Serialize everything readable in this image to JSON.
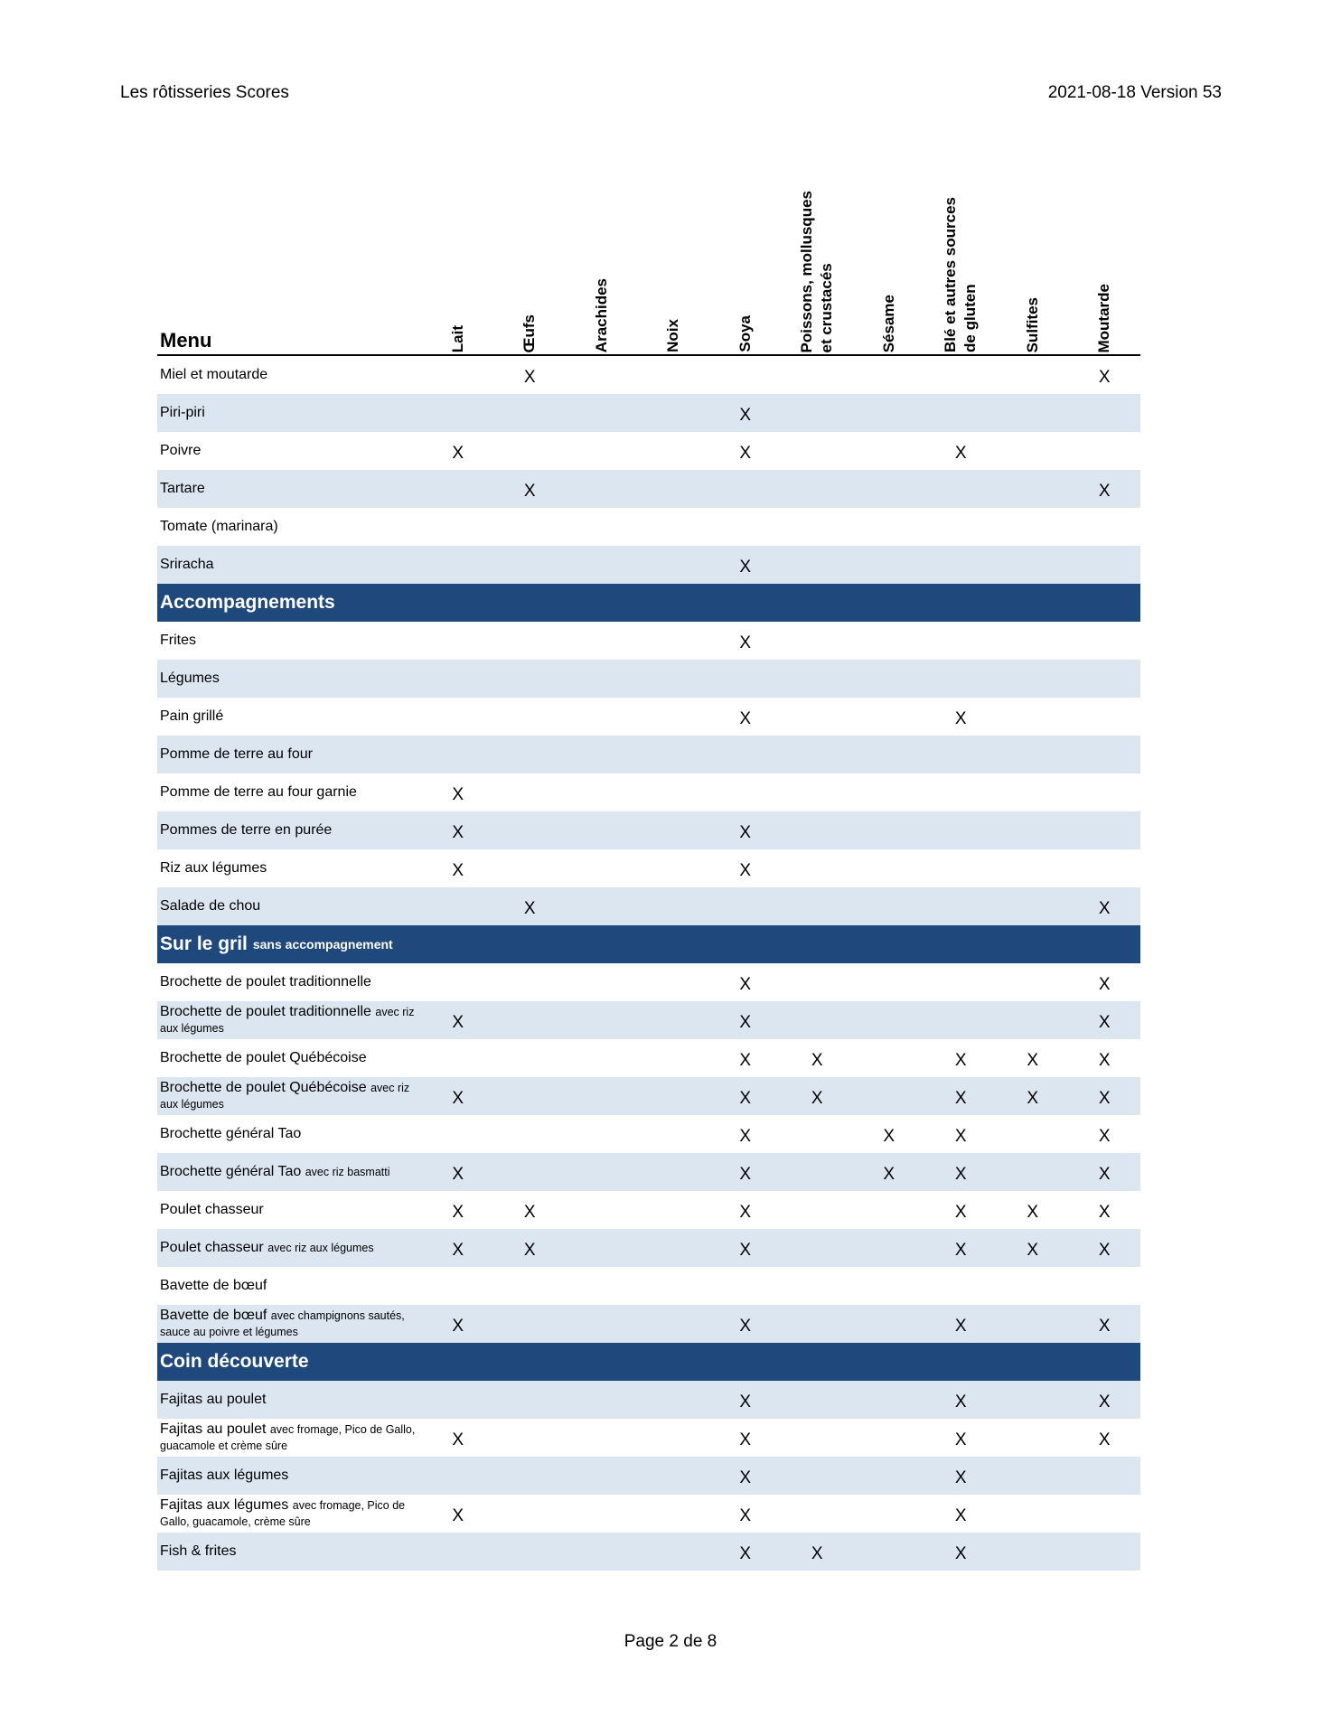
{
  "header": {
    "left": "Les rôtisseries Scores",
    "right": "2021-08-18 Version 53"
  },
  "footer": {
    "page": "Page 2 de 8"
  },
  "colors": {
    "section_bg": "#1F497D",
    "row_shaded": "#DCE6F1"
  },
  "table": {
    "menu_label": "Menu",
    "columns": [
      "Lait",
      "Œufs",
      "Arachides",
      "Noix",
      "Soya",
      "Poissons, mollusques\net crustacés",
      "Sésame",
      "Blé et autres sources\nde gluten",
      "Sulfites",
      "Moutarde"
    ],
    "groups": [
      {
        "title": "",
        "subtitle": "",
        "rows": [
          {
            "name": "Miel et moutarde",
            "sub": "",
            "shaded": false,
            "marks": [
              "",
              "X",
              "",
              "",
              "",
              "",
              "",
              "",
              "",
              "X"
            ]
          },
          {
            "name": "Piri-piri",
            "sub": "",
            "shaded": true,
            "marks": [
              "",
              "",
              "",
              "",
              "X",
              "",
              "",
              "",
              "",
              ""
            ]
          },
          {
            "name": "Poivre",
            "sub": "",
            "shaded": false,
            "marks": [
              "X",
              "",
              "",
              "",
              "X",
              "",
              "",
              "X",
              "",
              ""
            ]
          },
          {
            "name": "Tartare",
            "sub": "",
            "shaded": true,
            "marks": [
              "",
              "X",
              "",
              "",
              "",
              "",
              "",
              "",
              "",
              "X"
            ]
          },
          {
            "name": "Tomate (marinara)",
            "sub": "",
            "shaded": false,
            "marks": [
              "",
              "",
              "",
              "",
              "",
              "",
              "",
              "",
              "",
              ""
            ]
          },
          {
            "name": "Sriracha",
            "sub": "",
            "shaded": true,
            "marks": [
              "",
              "",
              "",
              "",
              "X",
              "",
              "",
              "",
              "",
              ""
            ]
          }
        ]
      },
      {
        "title": "Accompagnements",
        "subtitle": "",
        "rows": [
          {
            "name": "Frites",
            "sub": "",
            "shaded": false,
            "marks": [
              "",
              "",
              "",
              "",
              "X",
              "",
              "",
              "",
              "",
              ""
            ]
          },
          {
            "name": "Légumes",
            "sub": "",
            "shaded": true,
            "marks": [
              "",
              "",
              "",
              "",
              "",
              "",
              "",
              "",
              "",
              ""
            ]
          },
          {
            "name": "Pain grillé",
            "sub": "",
            "shaded": false,
            "marks": [
              "",
              "",
              "",
              "",
              "X",
              "",
              "",
              "X",
              "",
              ""
            ]
          },
          {
            "name": "Pomme de terre au four",
            "sub": "",
            "shaded": true,
            "marks": [
              "",
              "",
              "",
              "",
              "",
              "",
              "",
              "",
              "",
              ""
            ]
          },
          {
            "name": "Pomme de terre au four garnie",
            "sub": "",
            "shaded": false,
            "marks": [
              "X",
              "",
              "",
              "",
              "",
              "",
              "",
              "",
              "",
              ""
            ]
          },
          {
            "name": "Pommes de terre en purée",
            "sub": "",
            "shaded": true,
            "marks": [
              "X",
              "",
              "",
              "",
              "X",
              "",
              "",
              "",
              "",
              ""
            ]
          },
          {
            "name": "Riz aux légumes",
            "sub": "",
            "shaded": false,
            "marks": [
              "X",
              "",
              "",
              "",
              "X",
              "",
              "",
              "",
              "",
              ""
            ]
          },
          {
            "name": "Salade de chou",
            "sub": "",
            "shaded": true,
            "marks": [
              "",
              "X",
              "",
              "",
              "",
              "",
              "",
              "",
              "",
              "X"
            ]
          }
        ]
      },
      {
        "title": "Sur le gril",
        "subtitle": "sans accompagnement",
        "rows": [
          {
            "name": "Brochette de poulet traditionnelle",
            "sub": "",
            "shaded": false,
            "marks": [
              "",
              "",
              "",
              "",
              "X",
              "",
              "",
              "",
              "",
              "X"
            ]
          },
          {
            "name": "Brochette de poulet traditionnelle",
            "sub": "avec riz aux légumes",
            "shaded": true,
            "marks": [
              "X",
              "",
              "",
              "",
              "X",
              "",
              "",
              "",
              "",
              "X"
            ]
          },
          {
            "name": "Brochette de poulet Québécoise",
            "sub": "",
            "shaded": false,
            "marks": [
              "",
              "",
              "",
              "",
              "X",
              "X",
              "",
              "X",
              "X",
              "X"
            ]
          },
          {
            "name": "Brochette de poulet Québécoise",
            "sub": "avec riz aux légumes",
            "shaded": true,
            "marks": [
              "X",
              "",
              "",
              "",
              "X",
              "X",
              "",
              "X",
              "X",
              "X"
            ]
          },
          {
            "name": "Brochette général Tao",
            "sub": "",
            "shaded": false,
            "marks": [
              "",
              "",
              "",
              "",
              "X",
              "",
              "X",
              "X",
              "",
              "X"
            ]
          },
          {
            "name": "Brochette général Tao",
            "sub": "avec riz basmatti",
            "shaded": true,
            "marks": [
              "X",
              "",
              "",
              "",
              "X",
              "",
              "X",
              "X",
              "",
              "X"
            ]
          },
          {
            "name": "Poulet chasseur",
            "sub": "",
            "shaded": false,
            "marks": [
              "X",
              "X",
              "",
              "",
              "X",
              "",
              "",
              "X",
              "X",
              "X"
            ]
          },
          {
            "name": "Poulet chasseur",
            "sub": "avec riz aux légumes",
            "shaded": true,
            "marks": [
              "X",
              "X",
              "",
              "",
              "X",
              "",
              "",
              "X",
              "X",
              "X"
            ]
          },
          {
            "name": "Bavette de bœuf",
            "sub": "",
            "shaded": false,
            "marks": [
              "",
              "",
              "",
              "",
              "",
              "",
              "",
              "",
              "",
              ""
            ]
          },
          {
            "name": "Bavette de bœuf",
            "sub": "avec champignons sautés, sauce au poivre et légumes",
            "shaded": true,
            "marks": [
              "X",
              "",
              "",
              "",
              "X",
              "",
              "",
              "X",
              "",
              "X"
            ]
          }
        ]
      },
      {
        "title": "Coin découverte",
        "subtitle": "",
        "rows": [
          {
            "name": "Fajitas au poulet",
            "sub": "",
            "shaded": true,
            "marks": [
              "",
              "",
              "",
              "",
              "X",
              "",
              "",
              "X",
              "",
              "X"
            ]
          },
          {
            "name": "Fajitas au poulet",
            "sub": "avec fromage, Pico de Gallo, guacamole et crème sûre",
            "shaded": false,
            "marks": [
              "X",
              "",
              "",
              "",
              "X",
              "",
              "",
              "X",
              "",
              "X"
            ]
          },
          {
            "name": "Fajitas aux légumes",
            "sub": "",
            "shaded": true,
            "marks": [
              "",
              "",
              "",
              "",
              "X",
              "",
              "",
              "X",
              "",
              ""
            ]
          },
          {
            "name": "Fajitas aux légumes",
            "sub": "avec fromage, Pico de Gallo, guacamole, crème sûre",
            "shaded": false,
            "marks": [
              "X",
              "",
              "",
              "",
              "X",
              "",
              "",
              "X",
              "",
              ""
            ]
          },
          {
            "name": "Fish & frites",
            "sub": "",
            "shaded": true,
            "marks": [
              "",
              "",
              "",
              "",
              "X",
              "X",
              "",
              "X",
              "",
              ""
            ]
          }
        ]
      }
    ]
  }
}
